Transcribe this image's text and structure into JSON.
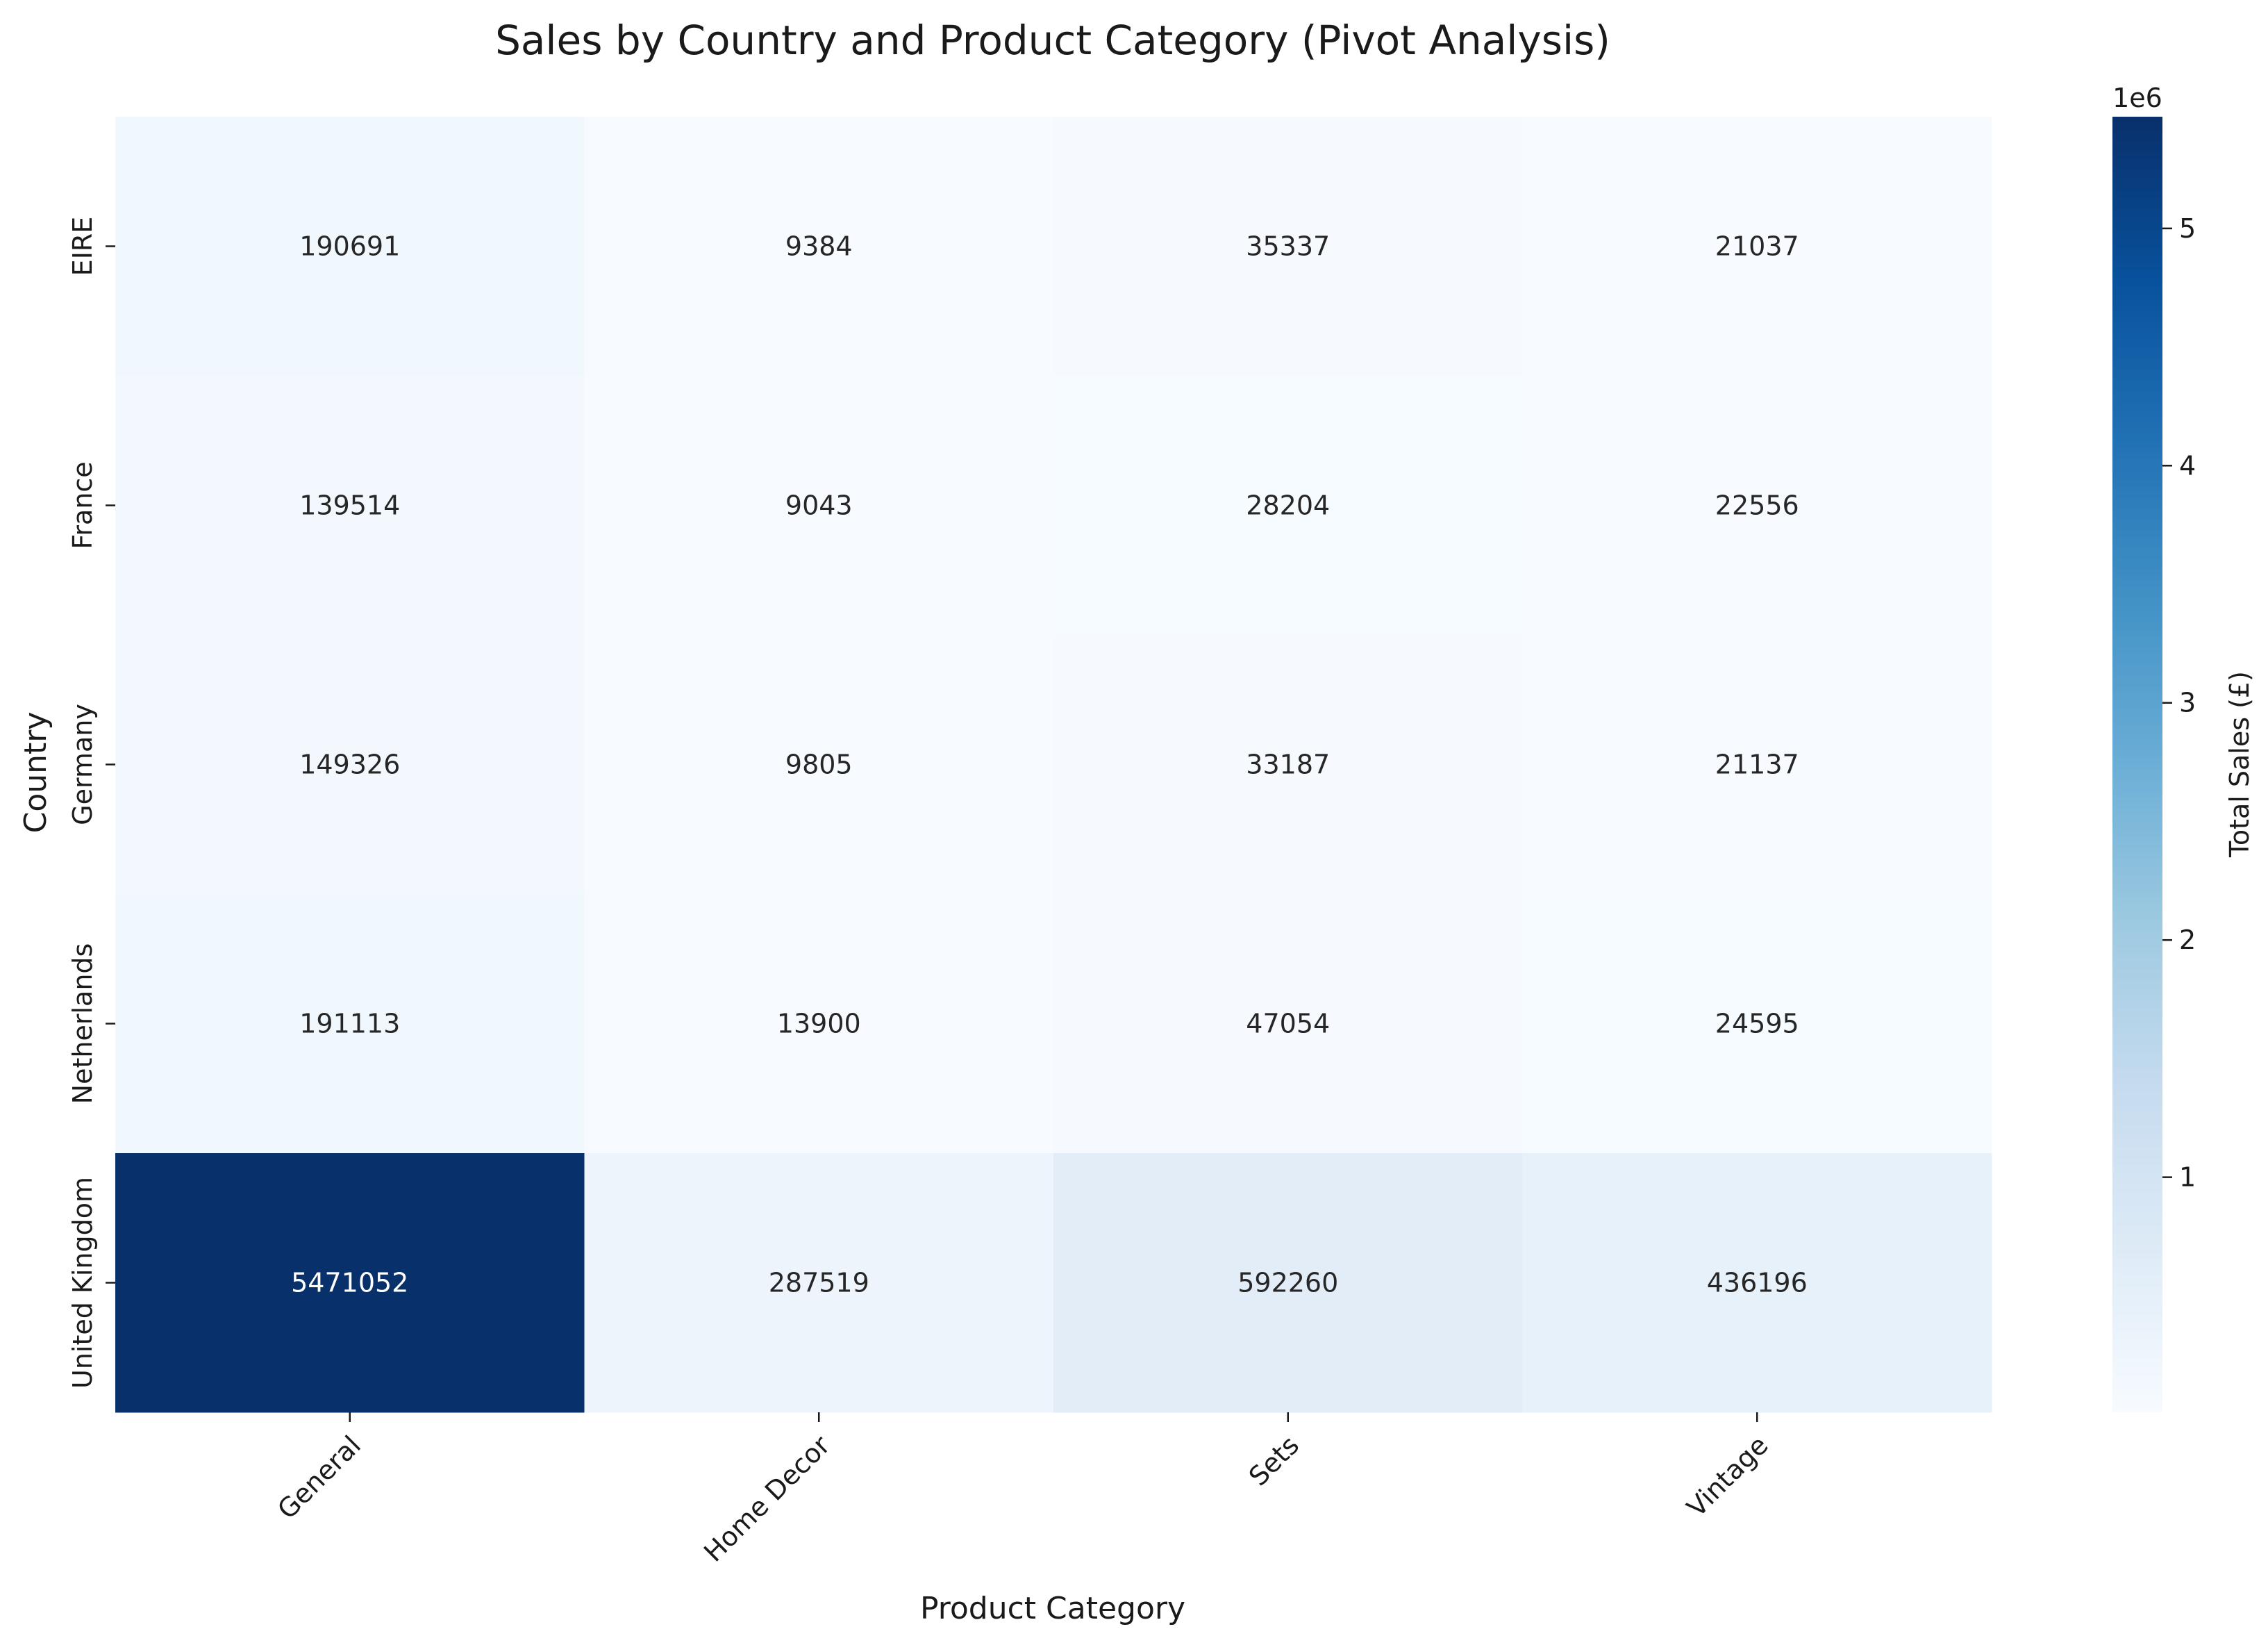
{
  "chart_data": {
    "type": "heatmap",
    "title": "Sales by Country and Product Category (Pivot Analysis)",
    "xlabel": "Product Category",
    "ylabel": "Country",
    "x_categories": [
      "General",
      "Home Decor",
      "Sets",
      "Vintage"
    ],
    "y_categories": [
      "EIRE",
      "France",
      "Germany",
      "Netherlands",
      "United Kingdom"
    ],
    "values": [
      [
        190691,
        9384,
        35337,
        21037
      ],
      [
        139514,
        9043,
        28204,
        22556
      ],
      [
        149326,
        9805,
        33187,
        21137
      ],
      [
        191113,
        13900,
        47054,
        24595
      ],
      [
        5471052,
        287519,
        592260,
        436196
      ]
    ],
    "colorbar": {
      "label": "Total Sales (£)",
      "offset_label": "1e6",
      "ticks": [
        1,
        2,
        3,
        4,
        5
      ],
      "tick_labels": [
        "1",
        "2",
        "3",
        "4",
        "5"
      ],
      "range": [
        9043,
        5471052
      ],
      "colormap": "Blues",
      "colors": [
        "#f7fbff",
        "#deebf7",
        "#c6dbef",
        "#9ecae1",
        "#6baed6",
        "#4292c6",
        "#2171b5",
        "#08519c",
        "#08306b"
      ]
    },
    "grid": false,
    "x_tick_rotation": 45
  }
}
